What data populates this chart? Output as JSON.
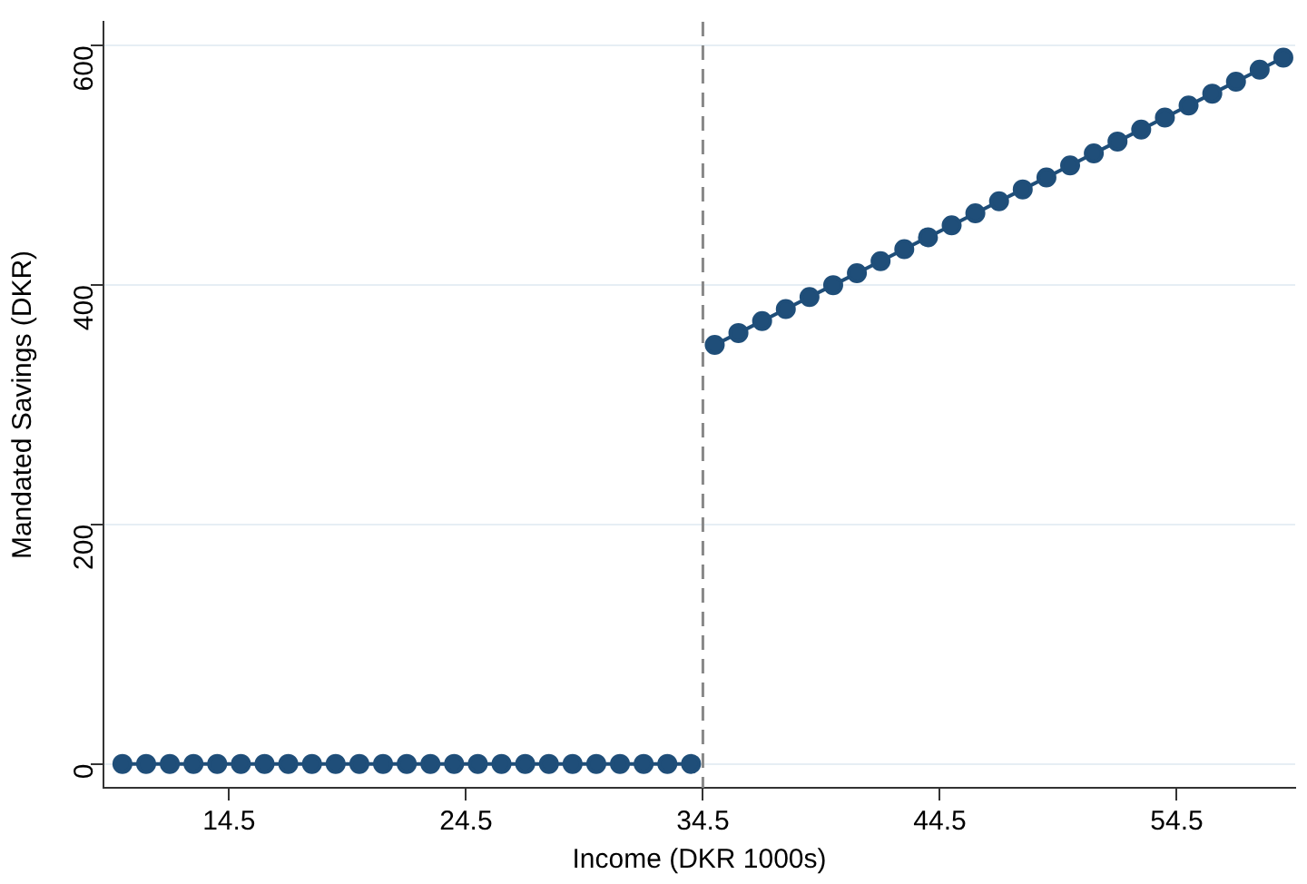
{
  "chart_data": {
    "type": "line",
    "xlabel": "Income (DKR 1000s)",
    "ylabel": "Mandated Savings (DKR)",
    "series": [
      {
        "color": "#1f4e79",
        "x": [
          10,
          11,
          12,
          13,
          14,
          15,
          16,
          17,
          18,
          19,
          20,
          21,
          22,
          23,
          24,
          25,
          26,
          27,
          28,
          29,
          30,
          31,
          32,
          33,
          34
        ],
        "values": [
          0,
          0,
          0,
          0,
          0,
          0,
          0,
          0,
          0,
          0,
          0,
          0,
          0,
          0,
          0,
          0,
          0,
          0,
          0,
          0,
          0,
          0,
          0,
          0,
          0
        ]
      },
      {
        "color": "#1f4e79",
        "x": [
          35,
          36,
          37,
          38,
          39,
          40,
          41,
          42,
          43,
          44,
          45,
          46,
          47,
          48,
          49,
          50,
          51,
          52,
          53,
          54,
          55,
          56,
          57,
          58,
          59
        ],
        "values": [
          350,
          360,
          370,
          380,
          390,
          400,
          410,
          420,
          430,
          440,
          450,
          460,
          470,
          480,
          490,
          500,
          510,
          520,
          530,
          540,
          550,
          560,
          570,
          580,
          590
        ]
      }
    ],
    "xlim": [
      9.2,
      59.5
    ],
    "xticks": [
      14.5,
      24.5,
      34.5,
      44.5,
      54.5
    ],
    "ylim": [
      -20,
      620
    ],
    "yticks": [
      0,
      200,
      400,
      600
    ],
    "ref_lines": [
      {
        "axis": "x",
        "value": 34.5,
        "color": "#888888",
        "line_style": "dashed"
      }
    ],
    "grid": "y",
    "legend": false,
    "marker": "circle",
    "line_style": "solid"
  }
}
